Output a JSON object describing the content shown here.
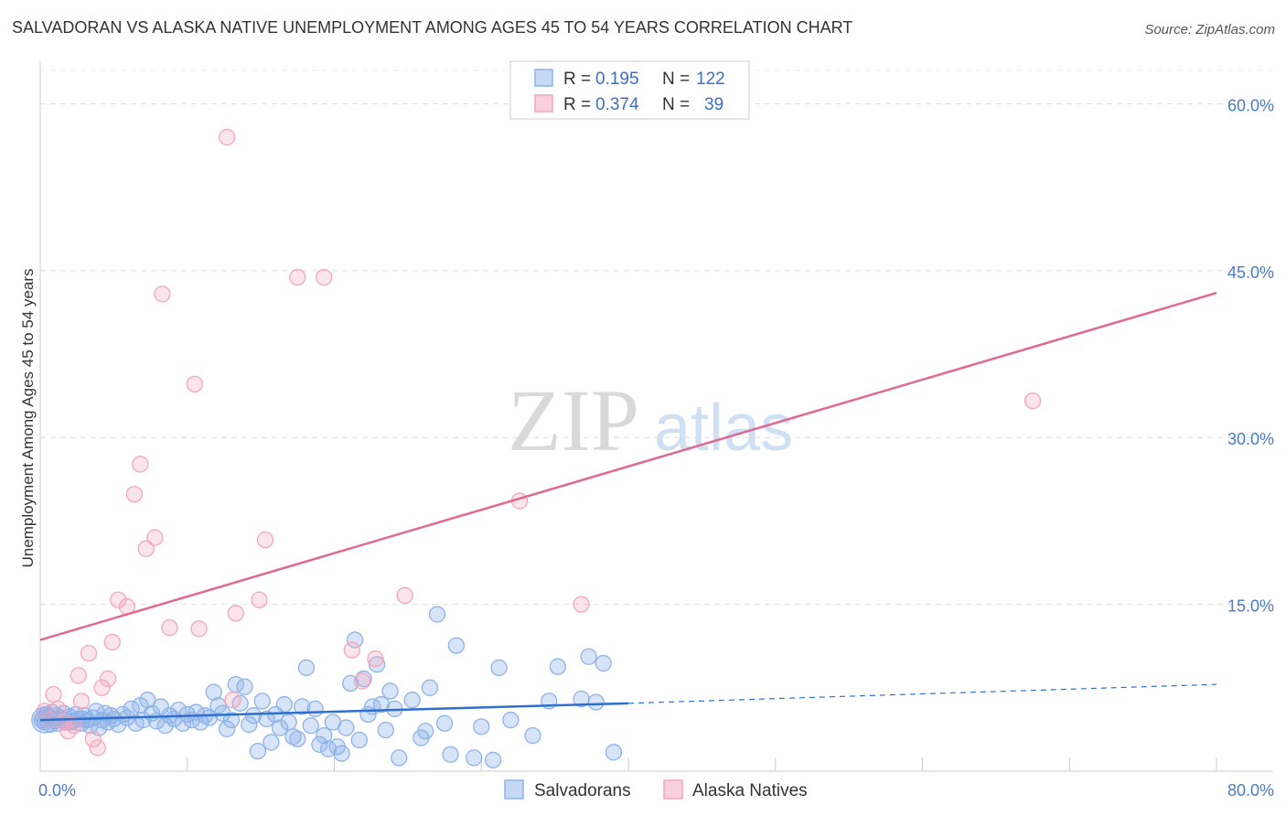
{
  "chart_data": {
    "type": "scatter",
    "title": "SALVADORAN VS ALASKA NATIVE UNEMPLOYMENT AMONG AGES 45 TO 54 YEARS CORRELATION CHART",
    "source": "Source: ZipAtlas.com",
    "xlabel": "",
    "ylabel": "Unemployment Among Ages 45 to 54 years",
    "xlim": [
      0,
      80
    ],
    "ylim": [
      0,
      63
    ],
    "x_tick_labels": [
      "0.0%",
      "80.0%"
    ],
    "y_ticks": [
      15,
      30,
      45,
      60
    ],
    "y_tick_labels": [
      "15.0%",
      "30.0%",
      "45.0%",
      "60.0%"
    ],
    "grid": true,
    "watermark": {
      "part1": "ZIP",
      "part2": "atlas"
    },
    "legend_stats": [
      {
        "r_label": "R =",
        "r_value": "0.195",
        "n_label": "N =",
        "n_value": "122"
      },
      {
        "r_label": "R =",
        "r_value": "0.374",
        "n_label": "N =",
        "n_value": "39"
      }
    ],
    "series": [
      {
        "name": "Salvadorans",
        "color": "#8db3e8",
        "line_color": "#2f6fce",
        "trend": {
          "x0": 0,
          "y0": 4.6,
          "x1": 40,
          "y1": 6.1,
          "dash_to_x": 80,
          "dash_to_y": 7.8
        },
        "points": [
          [
            0.2,
            4.8
          ],
          [
            0.3,
            4.4
          ],
          [
            0.4,
            5.1
          ],
          [
            0.5,
            4.6
          ],
          [
            0.6,
            4.9
          ],
          [
            0.7,
            4.2
          ],
          [
            0.8,
            5.3
          ],
          [
            0.9,
            4.7
          ],
          [
            1.0,
            4.5
          ],
          [
            1.1,
            5.0
          ],
          [
            1.2,
            4.3
          ],
          [
            1.3,
            4.8
          ],
          [
            1.5,
            4.6
          ],
          [
            1.6,
            5.2
          ],
          [
            1.8,
            4.4
          ],
          [
            2.0,
            4.9
          ],
          [
            2.2,
            4.5
          ],
          [
            2.4,
            5.1
          ],
          [
            2.6,
            4.7
          ],
          [
            2.8,
            4.3
          ],
          [
            3.0,
            5.0
          ],
          [
            3.2,
            4.6
          ],
          [
            3.4,
            4.1
          ],
          [
            3.6,
            4.8
          ],
          [
            3.8,
            5.4
          ],
          [
            4.0,
            3.9
          ],
          [
            4.2,
            4.6
          ],
          [
            4.4,
            5.2
          ],
          [
            4.6,
            4.4
          ],
          [
            4.8,
            5.0
          ],
          [
            5.0,
            4.7
          ],
          [
            5.3,
            4.2
          ],
          [
            5.6,
            5.1
          ],
          [
            5.9,
            4.8
          ],
          [
            6.2,
            5.6
          ],
          [
            6.5,
            4.3
          ],
          [
            6.8,
            5.9
          ],
          [
            7.0,
            4.6
          ],
          [
            7.3,
            6.4
          ],
          [
            7.6,
            5.2
          ],
          [
            7.9,
            4.5
          ],
          [
            8.2,
            5.8
          ],
          [
            8.5,
            4.1
          ],
          [
            8.8,
            5.0
          ],
          [
            9.1,
            4.7
          ],
          [
            9.4,
            5.5
          ],
          [
            9.7,
            4.3
          ],
          [
            10.0,
            5.1
          ],
          [
            10.3,
            4.6
          ],
          [
            10.6,
            5.3
          ],
          [
            10.9,
            4.4
          ],
          [
            11.2,
            5.0
          ],
          [
            11.5,
            4.8
          ],
          [
            11.8,
            7.1
          ],
          [
            12.1,
            5.9
          ],
          [
            12.4,
            5.2
          ],
          [
            12.7,
            3.8
          ],
          [
            13.0,
            4.6
          ],
          [
            13.3,
            7.8
          ],
          [
            13.6,
            6.1
          ],
          [
            13.9,
            7.6
          ],
          [
            14.2,
            4.2
          ],
          [
            14.5,
            5.0
          ],
          [
            14.8,
            1.8
          ],
          [
            15.1,
            6.3
          ],
          [
            15.4,
            4.7
          ],
          [
            15.7,
            2.6
          ],
          [
            16.0,
            5.1
          ],
          [
            16.3,
            3.9
          ],
          [
            16.6,
            6.0
          ],
          [
            16.9,
            4.4
          ],
          [
            17.2,
            3.1
          ],
          [
            17.5,
            2.9
          ],
          [
            17.8,
            5.8
          ],
          [
            18.1,
            9.3
          ],
          [
            18.4,
            4.1
          ],
          [
            18.7,
            5.6
          ],
          [
            19.0,
            2.4
          ],
          [
            19.3,
            3.2
          ],
          [
            19.6,
            2.0
          ],
          [
            19.9,
            4.4
          ],
          [
            20.2,
            2.2
          ],
          [
            20.5,
            1.6
          ],
          [
            20.8,
            3.9
          ],
          [
            21.1,
            7.9
          ],
          [
            21.4,
            11.8
          ],
          [
            21.7,
            2.8
          ],
          [
            22.0,
            8.3
          ],
          [
            22.3,
            5.1
          ],
          [
            22.6,
            5.8
          ],
          [
            22.9,
            9.6
          ],
          [
            23.2,
            6.0
          ],
          [
            23.5,
            3.7
          ],
          [
            23.8,
            7.2
          ],
          [
            24.1,
            5.6
          ],
          [
            24.4,
            1.2
          ],
          [
            25.3,
            6.4
          ],
          [
            25.9,
            3.0
          ],
          [
            26.2,
            3.6
          ],
          [
            26.5,
            7.5
          ],
          [
            27.0,
            14.1
          ],
          [
            27.5,
            4.3
          ],
          [
            27.9,
            1.5
          ],
          [
            28.3,
            11.3
          ],
          [
            29.5,
            1.2
          ],
          [
            30.0,
            4.0
          ],
          [
            30.8,
            1.0
          ],
          [
            31.2,
            9.3
          ],
          [
            32.0,
            4.6
          ],
          [
            33.5,
            3.2
          ],
          [
            34.6,
            6.3
          ],
          [
            35.2,
            9.4
          ],
          [
            36.8,
            6.5
          ],
          [
            37.3,
            10.3
          ],
          [
            37.8,
            6.2
          ],
          [
            38.3,
            9.7
          ],
          [
            39.0,
            1.7
          ],
          [
            0.1,
            4.6
          ],
          [
            0.4,
            4.9
          ],
          [
            1.4,
            4.8
          ],
          [
            2.1,
            4.4
          ],
          [
            2.9,
            4.7
          ]
        ]
      },
      {
        "name": "Alaska Natives",
        "color": "#f4a6bd",
        "line_color": "#e0698f",
        "trend": {
          "x0": 0,
          "y0": 11.8,
          "x1": 80,
          "y1": 43.0
        },
        "points": [
          [
            0.3,
            5.4
          ],
          [
            0.6,
            4.6
          ],
          [
            0.9,
            6.9
          ],
          [
            1.2,
            5.6
          ],
          [
            1.6,
            4.4
          ],
          [
            1.9,
            3.6
          ],
          [
            2.3,
            4.1
          ],
          [
            2.6,
            8.6
          ],
          [
            2.8,
            6.3
          ],
          [
            3.3,
            10.6
          ],
          [
            3.6,
            2.9
          ],
          [
            3.9,
            2.1
          ],
          [
            4.2,
            7.5
          ],
          [
            4.6,
            8.3
          ],
          [
            4.9,
            11.6
          ],
          [
            5.3,
            15.4
          ],
          [
            5.9,
            14.8
          ],
          [
            6.4,
            24.9
          ],
          [
            6.8,
            27.6
          ],
          [
            7.2,
            20.0
          ],
          [
            7.8,
            21.0
          ],
          [
            8.3,
            42.9
          ],
          [
            8.8,
            12.9
          ],
          [
            10.5,
            34.8
          ],
          [
            10.8,
            12.8
          ],
          [
            12.7,
            57.0
          ],
          [
            13.1,
            6.4
          ],
          [
            13.3,
            14.2
          ],
          [
            14.9,
            15.4
          ],
          [
            15.3,
            20.8
          ],
          [
            17.5,
            44.4
          ],
          [
            19.3,
            44.4
          ],
          [
            21.2,
            10.9
          ],
          [
            21.9,
            8.1
          ],
          [
            22.8,
            10.1
          ],
          [
            24.8,
            15.8
          ],
          [
            32.6,
            24.3
          ],
          [
            36.8,
            15.0
          ],
          [
            67.5,
            33.3
          ]
        ]
      }
    ]
  }
}
